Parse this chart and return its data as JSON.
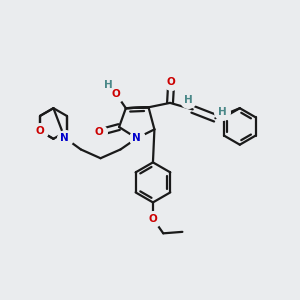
{
  "bg_color": "#eaecee",
  "bond_color": "#1a1a1a",
  "bond_width": 1.6,
  "colors": {
    "O": "#cc0000",
    "N": "#0000cc",
    "H": "#4a8888",
    "C": "#1a1a1a"
  },
  "figsize": [
    3.0,
    3.0
  ],
  "dpi": 100
}
